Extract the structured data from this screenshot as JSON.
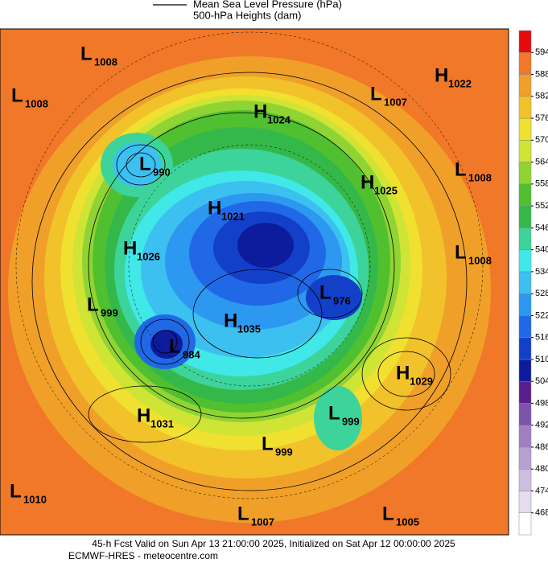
{
  "legend": [
    "Mean Sea Level Pressure (hPa)",
    "500-hPa Heights (dam)"
  ],
  "centers": [
    {
      "type": "L",
      "value": 1008
    },
    {
      "type": "L",
      "value": 1008
    },
    {
      "type": "H",
      "value": 1024
    },
    {
      "type": "H",
      "value": 1022
    },
    {
      "type": "L",
      "value": 1007
    },
    {
      "type": "L",
      "value": 990
    },
    {
      "type": "H",
      "value": 1025
    },
    {
      "type": "L",
      "value": 1008
    },
    {
      "type": "H",
      "value": 1021
    },
    {
      "type": "H",
      "value": 1026
    },
    {
      "type": "L",
      "value": 1008
    },
    {
      "type": "L",
      "value": 976
    },
    {
      "type": "L",
      "value": 999
    },
    {
      "type": "H",
      "value": 1035
    },
    {
      "type": "L",
      "value": 984
    },
    {
      "type": "H",
      "value": 1029
    },
    {
      "type": "H",
      "value": 1031
    },
    {
      "type": "L",
      "value": 999
    },
    {
      "type": "L",
      "value": 999
    },
    {
      "type": "L",
      "value": 1010
    },
    {
      "type": "L",
      "value": 1007
    },
    {
      "type": "L",
      "value": 1005
    }
  ],
  "colorbar": {
    "ticks": [
      468,
      474,
      480,
      486,
      492,
      498,
      504,
      510,
      516,
      522,
      528,
      534,
      540,
      546,
      552,
      558,
      564,
      570,
      576,
      582,
      588,
      594
    ],
    "colors": [
      "#ffffff",
      "#e4dcef",
      "#cdbde0",
      "#b7a0d2",
      "#9e80c2",
      "#7c55aa",
      "#5a1f8c",
      "#0c1c9c",
      "#1240c8",
      "#2068e6",
      "#2c98f0",
      "#3cc0f0",
      "#40e8e8",
      "#3cd49a",
      "#34b84a",
      "#50c030",
      "#90d434",
      "#d0e436",
      "#f0e030",
      "#f2c22a",
      "#f0a028",
      "#f07828",
      "#e60a0a"
    ]
  },
  "footer": [
    "45-h Fcst Valid on Sun Apr 13 21:00:00 2025, Initialized on Sat Apr 12 00:00:00 2025",
    "ECMWF-HRES - meteocentre.com"
  ]
}
